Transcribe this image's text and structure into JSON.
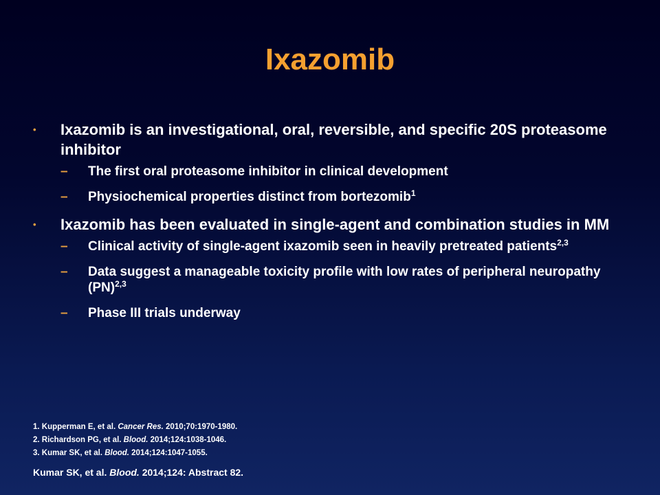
{
  "slide": {
    "title": "Ixazomib",
    "bullets": [
      {
        "text": "Ixazomib is an investigational, oral, reversible, and specific 20S proteasome inhibitor",
        "sub": [
          {
            "text": "The first oral proteasome inhibitor in clinical development",
            "sup": ""
          },
          {
            "text": "Physiochemical properties distinct from bortezomib",
            "sup": "1"
          }
        ]
      },
      {
        "text": "Ixazomib has been evaluated in single-agent and combination studies in MM",
        "sub": [
          {
            "text": "Clinical activity of single-agent ixazomib seen in heavily pretreated patients",
            "sup": "2,3"
          },
          {
            "text": "Data suggest a manageable toxicity profile with low rates of peripheral neuropathy (PN)",
            "sup": "2,3"
          },
          {
            "text": "Phase III trials underway",
            "sup": ""
          }
        ]
      }
    ],
    "bullet_marker": "•",
    "sub_marker": "–",
    "references": [
      {
        "prefix": "1. Kupperman E, et al. ",
        "journal": "Cancer Res.",
        "suffix": " 2010;70:1970-1980."
      },
      {
        "prefix": "2. Richardson PG, et al. ",
        "journal": "Blood.",
        "suffix": " 2014;124:1038-1046."
      },
      {
        "prefix": "3. Kumar SK, et al. ",
        "journal": "Blood.",
        "suffix": " 2014;124:1047-1055."
      }
    ],
    "source": {
      "prefix": "Kumar SK, et al. ",
      "journal": "Blood.",
      "suffix": " 2014;124: Abstract 82."
    },
    "colors": {
      "title": "#f5a030",
      "text": "#ffffff",
      "bullet_marker": "#e8a040",
      "background_top": "#000020",
      "background_bottom": "#102462"
    }
  }
}
